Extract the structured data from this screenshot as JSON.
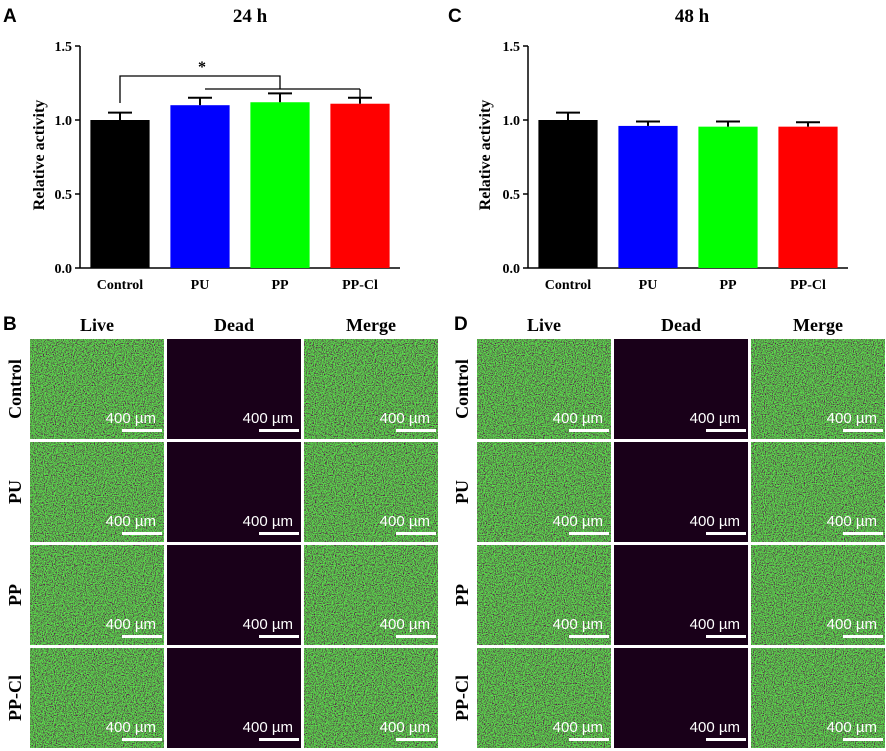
{
  "panels": {
    "A": "A",
    "B": "B",
    "C": "C",
    "D": "D"
  },
  "chart_data": [
    {
      "type": "bar",
      "title": "24 h",
      "ylabel": "Relative activity",
      "xlabel": "",
      "categories": [
        "Control",
        "PU",
        "PP",
        "PP-Cl"
      ],
      "values": [
        1.0,
        1.1,
        1.12,
        1.11
      ],
      "errors": [
        0.05,
        0.05,
        0.06,
        0.04
      ],
      "colors": [
        "#000000",
        "#0000ff",
        "#00ff00",
        "#ff0000"
      ],
      "ylim": [
        0,
        1.5
      ],
      "yticks": [
        "0.0",
        "0.5",
        "1.0",
        "1.5"
      ],
      "annotation": "*"
    },
    {
      "type": "bar",
      "title": "48 h",
      "ylabel": "Relative activity",
      "xlabel": "",
      "categories": [
        "Control",
        "PU",
        "PP",
        "PP-Cl"
      ],
      "values": [
        1.0,
        0.96,
        0.955,
        0.955
      ],
      "errors": [
        0.05,
        0.03,
        0.035,
        0.03
      ],
      "colors": [
        "#000000",
        "#0000ff",
        "#00ff00",
        "#ff0000"
      ],
      "ylim": [
        0,
        1.5
      ],
      "yticks": [
        "0.0",
        "0.5",
        "1.0",
        "1.5"
      ]
    }
  ],
  "micrographs": {
    "columns": [
      "Live",
      "Dead",
      "Merge"
    ],
    "rows": [
      "Control",
      "PU",
      "PP",
      "PP-Cl"
    ],
    "scale_bar": "400 µm",
    "live_color": "#2fa62f",
    "dead_color": "#000000"
  }
}
